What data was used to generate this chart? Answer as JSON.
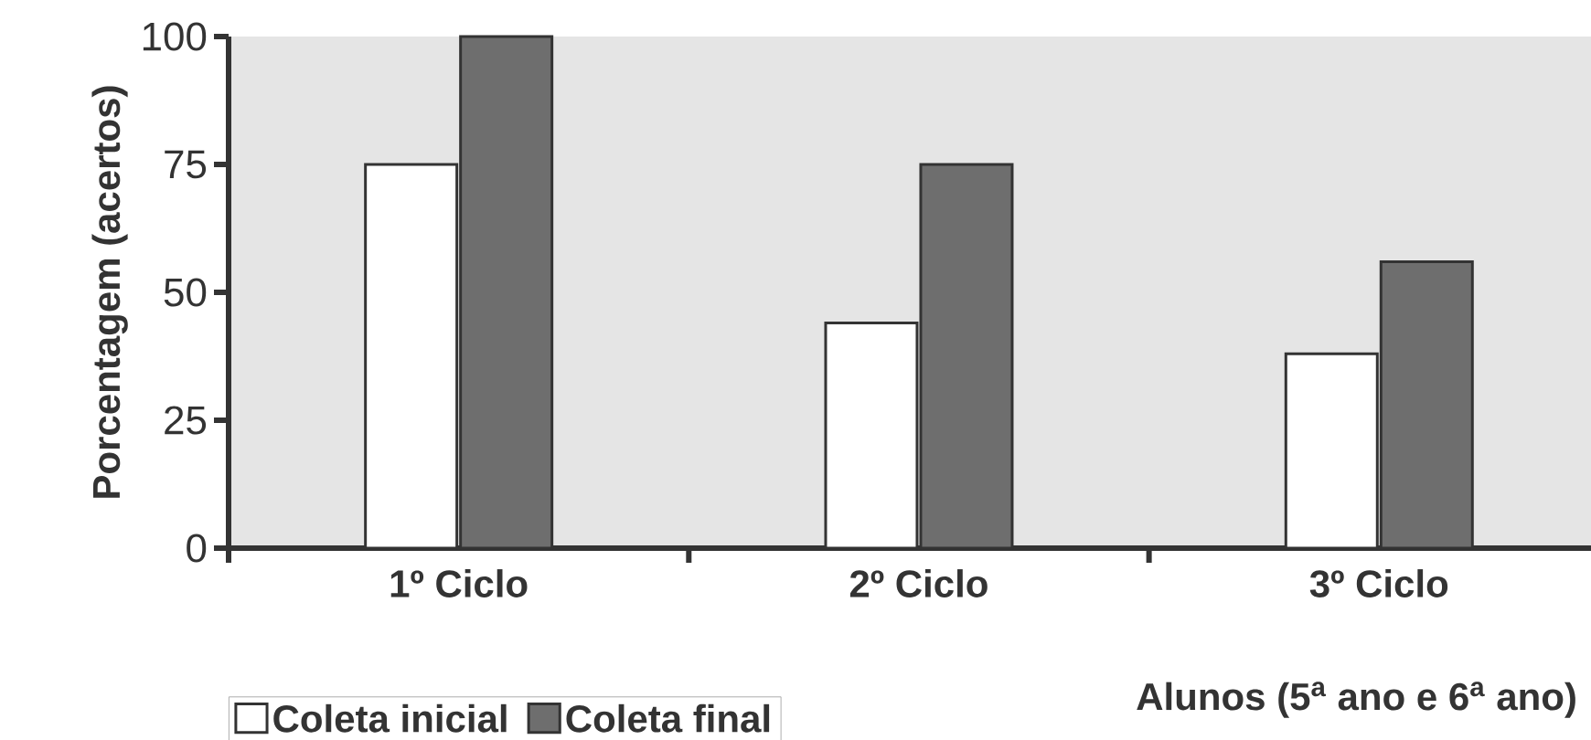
{
  "chart_data": {
    "type": "bar",
    "xlabel": "Alunos (5$^{a}$ ano e 6$^{a}$ ano)",
    "ylabel": "Porcentagem (acertos)",
    "categories": [
      "1º Ciclo",
      "2º Ciclo",
      "3º Ciclo"
    ],
    "series": [
      {
        "name": "Coleta inicial",
        "color": "#ffffff",
        "values": [
          75,
          44,
          38
        ]
      },
      {
        "name": "Coleta final",
        "color": "#6e6e6e",
        "values": [
          100,
          75,
          56
        ]
      }
    ],
    "ylim": [
      0,
      100
    ],
    "yticks": [
      0,
      25,
      50,
      75,
      100
    ],
    "grid": false,
    "legend": "bottom"
  }
}
